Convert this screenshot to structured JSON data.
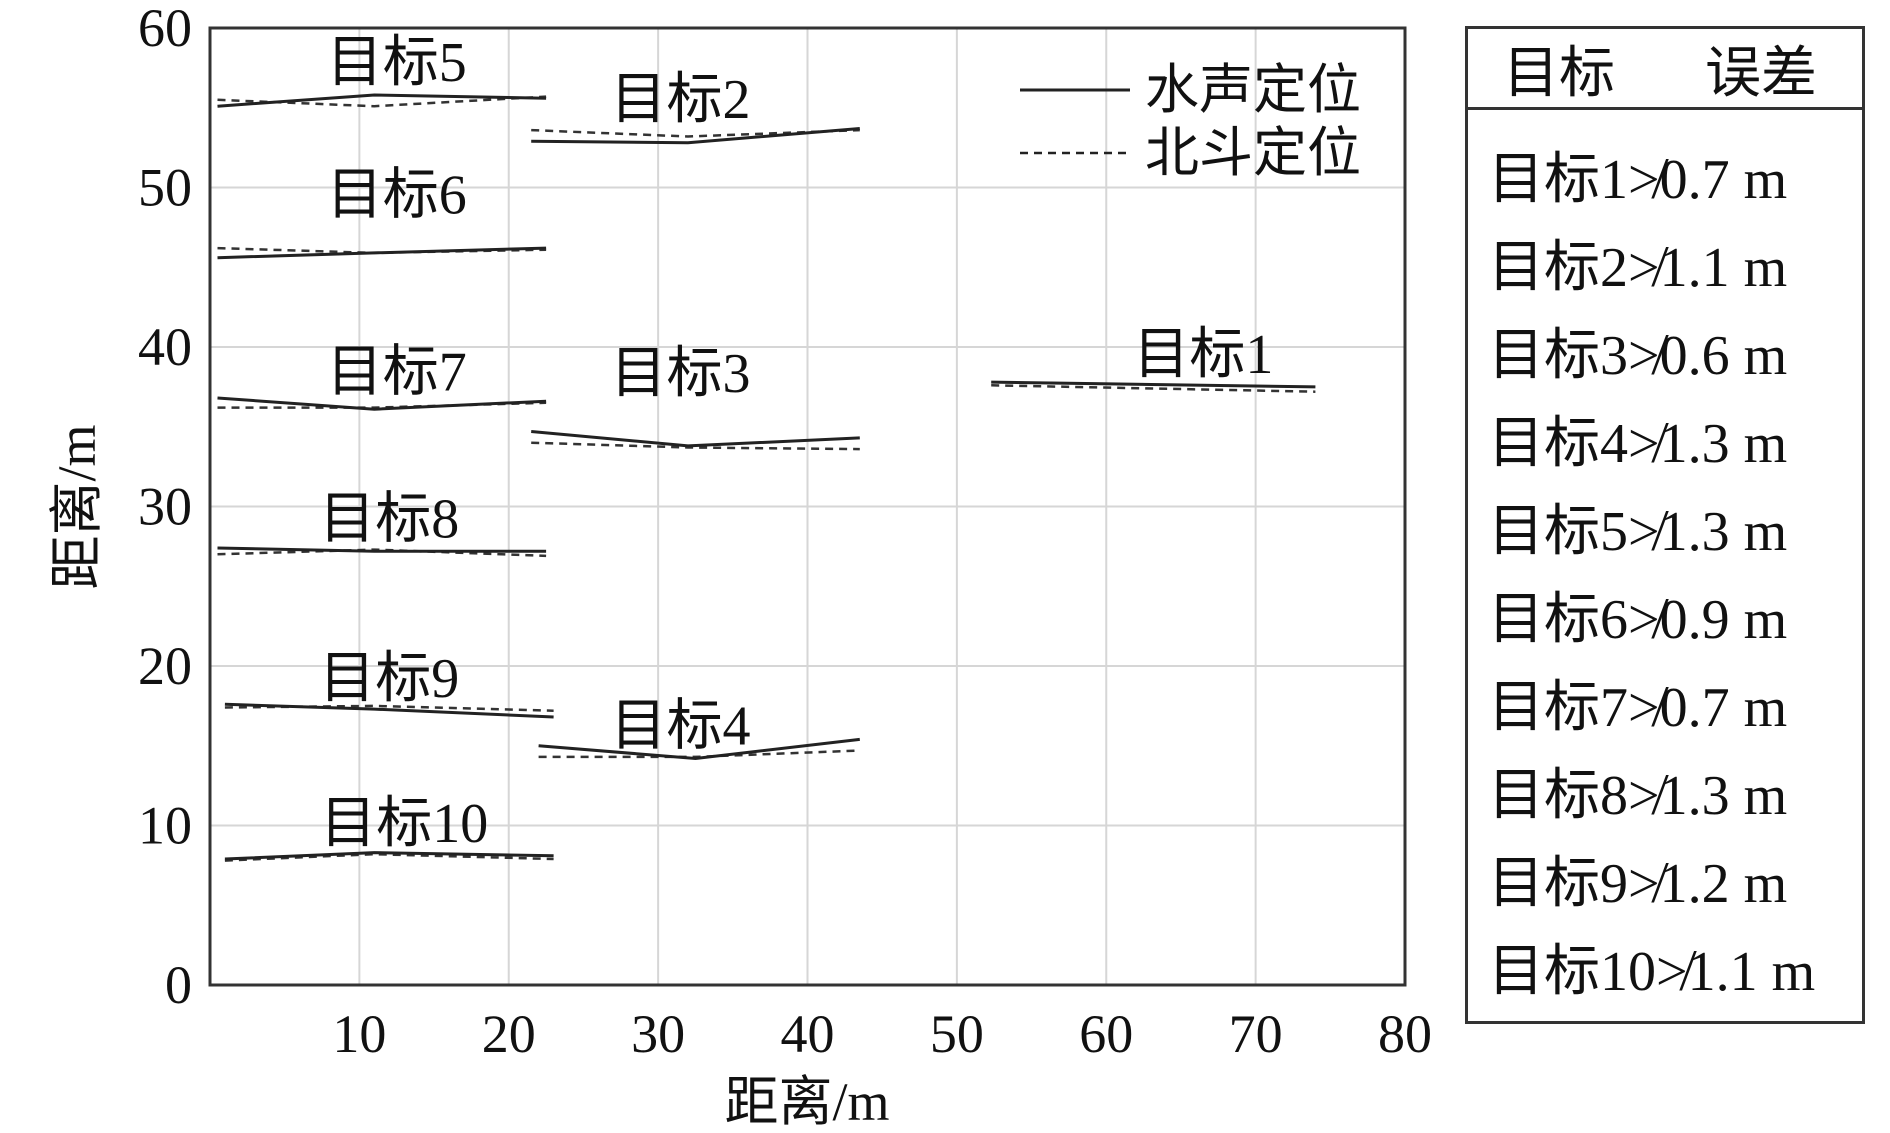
{
  "chart_data": {
    "type": "line",
    "xlabel": "距离/m",
    "ylabel": "距离/m",
    "xlim": [
      0,
      80
    ],
    "ylim": [
      0,
      60
    ],
    "xticks": [
      "10",
      "20",
      "30",
      "40",
      "50",
      "60",
      "70",
      "80"
    ],
    "yticks": [
      "0",
      "10",
      "20",
      "30",
      "40",
      "50",
      "60"
    ],
    "grid": true,
    "legend": {
      "position": "top-right",
      "entries": [
        {
          "label": "水声定位",
          "style": "solid"
        },
        {
          "label": "北斗定位",
          "style": "dashed"
        }
      ]
    },
    "targets": [
      {
        "label": "目标1",
        "label_pos": [
          66.5,
          39.5
        ],
        "acoustic": [
          [
            52.3,
            37.8
          ],
          [
            74,
            37.5
          ]
        ],
        "beidou": [
          [
            52.3,
            37.6
          ],
          [
            74,
            37.2
          ]
        ]
      },
      {
        "label": "目标2",
        "label_pos": [
          31.5,
          55.5
        ],
        "acoustic": [
          [
            21.5,
            52.9
          ],
          [
            32,
            52.8
          ],
          [
            43.5,
            53.7
          ]
        ],
        "beidou": [
          [
            21.5,
            53.6
          ],
          [
            32,
            53.2
          ],
          [
            43.5,
            53.6
          ]
        ]
      },
      {
        "label": "目标3",
        "label_pos": [
          31.5,
          38.3
        ],
        "acoustic": [
          [
            21.5,
            34.7
          ],
          [
            32,
            33.8
          ],
          [
            43.5,
            34.3
          ]
        ],
        "beidou": [
          [
            21.5,
            34.0
          ],
          [
            32,
            33.7
          ],
          [
            43.5,
            33.6
          ]
        ]
      },
      {
        "label": "目标4",
        "label_pos": [
          31.5,
          16.2
        ],
        "acoustic": [
          [
            22,
            15.0
          ],
          [
            32.5,
            14.2
          ],
          [
            43.5,
            15.4
          ]
        ],
        "beidou": [
          [
            22,
            14.3
          ],
          [
            32.5,
            14.3
          ],
          [
            43.5,
            14.7
          ]
        ]
      },
      {
        "label": "目标5",
        "label_pos": [
          12.5,
          57.8
        ],
        "acoustic": [
          [
            0.5,
            55.1
          ],
          [
            11,
            55.8
          ],
          [
            22.5,
            55.6
          ]
        ],
        "beidou": [
          [
            0.5,
            55.5
          ],
          [
            11,
            55.1
          ],
          [
            22.5,
            55.7
          ]
        ]
      },
      {
        "label": "目标6",
        "label_pos": [
          12.5,
          49.5
        ],
        "acoustic": [
          [
            0.5,
            45.6
          ],
          [
            11,
            45.9
          ],
          [
            22.5,
            46.2
          ]
        ],
        "beidou": [
          [
            0.5,
            46.2
          ],
          [
            11,
            45.9
          ],
          [
            22.5,
            46.1
          ]
        ]
      },
      {
        "label": "目标7",
        "label_pos": [
          12.5,
          38.4
        ],
        "acoustic": [
          [
            0.5,
            36.8
          ],
          [
            11,
            36.1
          ],
          [
            22.5,
            36.6
          ]
        ],
        "beidou": [
          [
            0.5,
            36.2
          ],
          [
            11,
            36.2
          ],
          [
            22.5,
            36.5
          ]
        ]
      },
      {
        "label": "目标8",
        "label_pos": [
          12,
          29.2
        ],
        "acoustic": [
          [
            0.5,
            27.4
          ],
          [
            11,
            27.2
          ],
          [
            22.5,
            27.2
          ]
        ],
        "beidou": [
          [
            0.5,
            27.0
          ],
          [
            11,
            27.3
          ],
          [
            22.5,
            26.9
          ]
        ]
      },
      {
        "label": "目标9",
        "label_pos": [
          12,
          19.2
        ],
        "acoustic": [
          [
            1,
            17.6
          ],
          [
            11,
            17.3
          ],
          [
            23,
            16.8
          ]
        ],
        "beidou": [
          [
            1,
            17.4
          ],
          [
            11,
            17.5
          ],
          [
            23,
            17.2
          ]
        ]
      },
      {
        "label": "目标10",
        "label_pos": [
          13,
          10.1
        ],
        "acoustic": [
          [
            1,
            7.9
          ],
          [
            11,
            8.3
          ],
          [
            23,
            8.1
          ]
        ],
        "beidou": [
          [
            1,
            7.8
          ],
          [
            11,
            8.2
          ],
          [
            23,
            7.9
          ]
        ]
      }
    ]
  },
  "error_table": {
    "header": {
      "target": "目标",
      "error": "误差"
    },
    "rows": [
      "目标1≯0.7 m",
      "目标2≯1.1 m",
      "目标3≯0.6 m",
      "目标4≯1.3 m",
      "目标5≯1.3 m",
      "目标6≯0.9 m",
      "目标7≯0.7 m",
      "目标8≯1.3 m",
      "目标9≯1.2 m",
      "目标10≯1.1 m"
    ]
  }
}
